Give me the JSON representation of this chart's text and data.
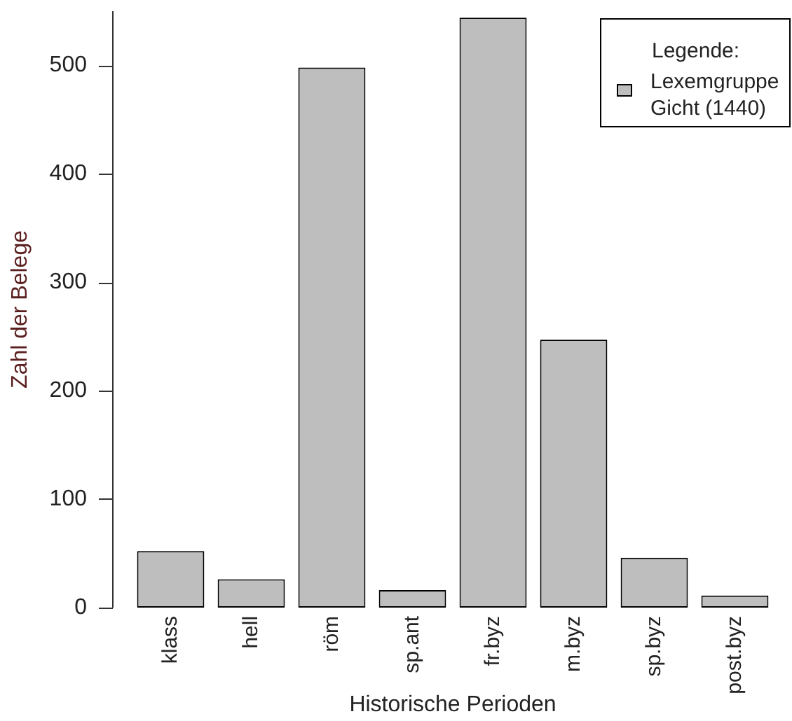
{
  "chart_data": {
    "type": "bar",
    "xlabel": "Historische Perioden",
    "ylabel": "Zahl der Belege",
    "categories": [
      "klass",
      "hell",
      "röm",
      "sp.ant",
      "fr.byz",
      "m.byz",
      "sp.byz",
      "post.byz"
    ],
    "series": [
      {
        "name": "Lexemgruppe Gicht (1440)",
        "color": "#bebebe",
        "values": [
          52,
          26,
          498,
          16,
          544,
          247,
          46,
          11
        ]
      }
    ],
    "ylim": [
      0,
      550
    ],
    "yticks": [
      0,
      100,
      200,
      300,
      400,
      500
    ],
    "legend": "top right",
    "legend_title": "Legende:",
    "grid": false
  }
}
